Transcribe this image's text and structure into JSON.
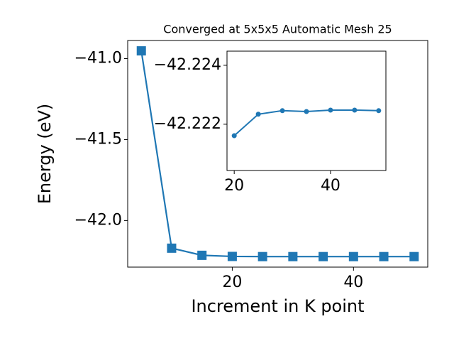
{
  "chart_data": [
    {
      "type": "line",
      "title": "Converged at 5x5x5 Automatic Mesh 25",
      "x_label": "Increment in K point",
      "y_label": "Energy (eV)",
      "x": [
        5,
        10,
        15,
        20,
        25,
        30,
        35,
        40,
        45,
        50
      ],
      "series": [
        {
          "color": "#1f77b4",
          "marker": "square",
          "values": [
            -40.952,
            -42.171,
            -42.215,
            -42.222,
            -42.223,
            -42.223,
            -42.223,
            -42.223,
            -42.223,
            -42.223
          ]
        }
      ],
      "xlim": [
        2.75,
        52.25
      ],
      "xticks": [
        20,
        40
      ],
      "ylim": [
        -42.288,
        -40.888
      ],
      "yticks": [
        {
          "value": -42.0,
          "label": "−42.0"
        },
        {
          "value": -41.5,
          "label": "−41.5"
        },
        {
          "value": -41.0,
          "label": "−41.0"
        }
      ]
    },
    {
      "type": "line",
      "x": [
        20,
        25,
        30,
        35,
        40,
        45,
        50
      ],
      "series": [
        {
          "color": "#1f77b4",
          "marker": "circle",
          "values": [
            -42.22161,
            -42.22234,
            -42.22246,
            -42.22243,
            -42.22248,
            -42.22248,
            -42.22246
          ]
        }
      ],
      "xlim": [
        18.5,
        51.5
      ],
      "xticks": [
        20,
        40
      ],
      "ylim": [
        -42.22043,
        -42.22448
      ],
      "yticks": [
        {
          "value": -42.222,
          "label": "−42.222"
        },
        {
          "value": -42.224,
          "label": "−42.224"
        }
      ]
    }
  ]
}
